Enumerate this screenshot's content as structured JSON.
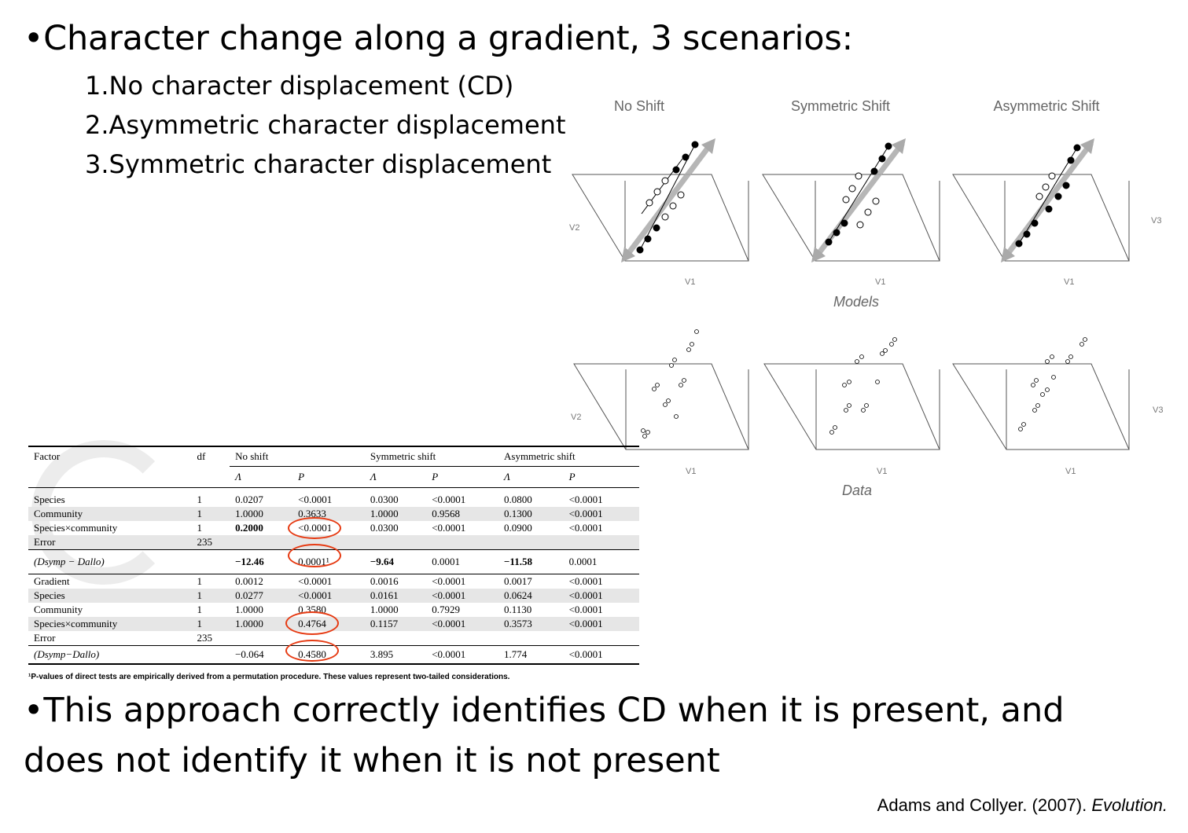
{
  "slide": {
    "title_bullet": "•Character change along a gradient, 3 scenarios:",
    "scenarios": [
      "1.No character displacement (CD)",
      "2.Asymmetric character displacement",
      "3.Symmetric character displacement"
    ],
    "conclusion": "•This approach correctly identifies CD when it is present, and does not identify it when it is not present",
    "citation_text": "Adams and Collyer. (2007). ",
    "citation_journal": "Evolution."
  },
  "figure": {
    "panel_titles": [
      "No Shift",
      "Symmetric Shift",
      "Asymmetric Shift"
    ],
    "models_label": "Models",
    "data_label": "Data",
    "axis_v1": "V1",
    "axis_v2": "V2",
    "axis_v3": "V3"
  },
  "table": {
    "headers": {
      "factor": "Factor",
      "df": "df",
      "no_shift": "No shift",
      "symmetric": "Symmetric shift",
      "asymmetric": "Asymmetric shift",
      "lambda": "Λ",
      "p": "P"
    },
    "top_rows": [
      {
        "factor": "Species",
        "df": "1",
        "ns_l": "0.0207",
        "ns_p": "<0.0001",
        "ss_l": "0.0300",
        "ss_p": "<0.0001",
        "as_l": "0.0800",
        "as_p": "<0.0001"
      },
      {
        "factor": "Community",
        "df": "1",
        "ns_l": "1.0000",
        "ns_p": "0.3633",
        "ss_l": "1.0000",
        "ss_p": "0.9568",
        "as_l": "0.1300",
        "as_p": "<0.0001"
      },
      {
        "factor": "Species×community",
        "df": "1",
        "ns_l": "0.2000",
        "ns_p": "<0.0001",
        "ss_l": "0.0300",
        "ss_p": "<0.0001",
        "as_l": "0.0900",
        "as_p": "<0.0001"
      },
      {
        "factor": "Error",
        "df": "235",
        "ns_l": "",
        "ns_p": "",
        "ss_l": "",
        "ss_p": "",
        "as_l": "",
        "as_p": ""
      }
    ],
    "top_diff": {
      "factor": "(Dsymp − Dallo)",
      "ns_l": "−12.46",
      "ns_p": "0.0001¹",
      "ss_l": "−9.64",
      "ss_p": "0.0001",
      "as_l": "−11.58",
      "as_p": "0.0001"
    },
    "bottom_rows": [
      {
        "factor": "Gradient",
        "df": "1",
        "ns_l": "0.0012",
        "ns_p": "<0.0001",
        "ss_l": "0.0016",
        "ss_p": "<0.0001",
        "as_l": "0.0017",
        "as_p": "<0.0001"
      },
      {
        "factor": "Species",
        "df": "1",
        "ns_l": "0.0277",
        "ns_p": "<0.0001",
        "ss_l": "0.0161",
        "ss_p": "<0.0001",
        "as_l": "0.0624",
        "as_p": "<0.0001"
      },
      {
        "factor": "Community",
        "df": "1",
        "ns_l": "1.0000",
        "ns_p": "0.3580",
        "ss_l": "1.0000",
        "ss_p": "0.7929",
        "as_l": "0.1130",
        "as_p": "<0.0001"
      },
      {
        "factor": "Species×community",
        "df": "1",
        "ns_l": "1.0000",
        "ns_p": "0.4764",
        "ss_l": "0.1157",
        "ss_p": "<0.0001",
        "as_l": "0.3573",
        "as_p": "<0.0001"
      },
      {
        "factor": "Error",
        "df": "235",
        "ns_l": "",
        "ns_p": "",
        "ss_l": "",
        "ss_p": "",
        "as_l": "",
        "as_p": ""
      }
    ],
    "bottom_diff": {
      "factor": "(Dsymp−Dallo)",
      "ns_l": "−0.064",
      "ns_p": "0.4580",
      "ss_l": "3.895",
      "ss_p": "<0.0001",
      "as_l": "1.774",
      "as_p": "<0.0001"
    },
    "footnote": "¹P-values of direct tests are empirically derived from a permutation procedure. These values represent two-tailed considerations."
  },
  "colors": {
    "highlight_circle": "#e63a12",
    "row_shade": "#e6e6e6",
    "figure_label": "#666666"
  }
}
